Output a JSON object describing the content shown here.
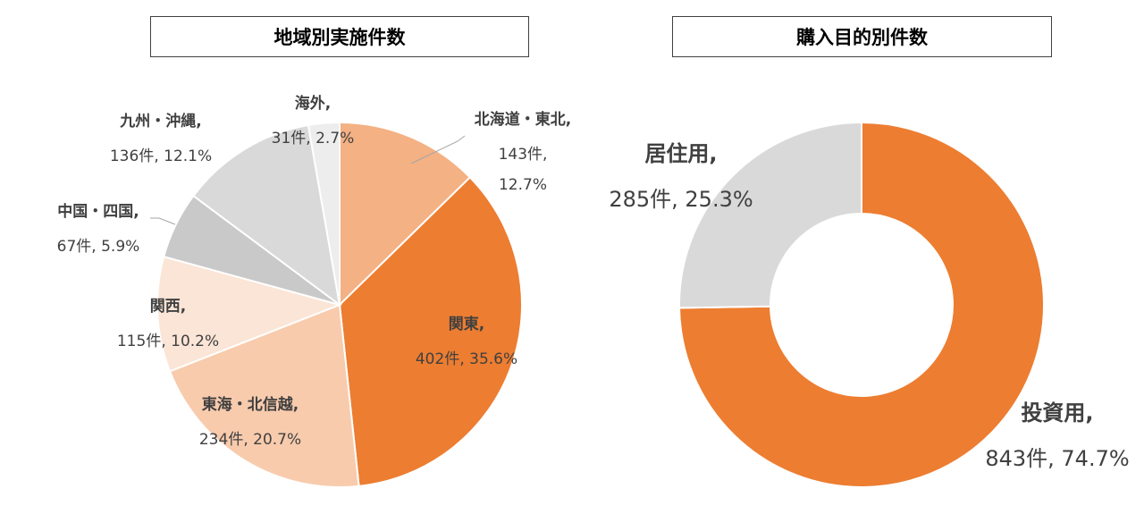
{
  "chart_data": [
    {
      "type": "pie",
      "title": "地域別実施件数",
      "unit": "件",
      "slices": [
        {
          "label": "北海道・東北",
          "value": 143,
          "percent": "12.7%",
          "value_text": "143件,",
          "color": "#F4B183"
        },
        {
          "label": "関東",
          "value": 402,
          "percent": "35.6%",
          "value_text": "402件, 35.6%",
          "color": "#ED7D31"
        },
        {
          "label": "東海・北信越",
          "value": 234,
          "percent": "20.7%",
          "value_text": "234件, 20.7%",
          "color": "#F8CBAD"
        },
        {
          "label": "関西",
          "value": 115,
          "percent": "10.2%",
          "value_text": "115件, 10.2%",
          "color": "#FBE5D6"
        },
        {
          "label": "中国・四国",
          "value": 67,
          "percent": "5.9%",
          "value_text": "67件, 5.9%",
          "color": "#C9C9C9"
        },
        {
          "label": "九州・沖縄",
          "value": 136,
          "percent": "12.1%",
          "value_text": "136件, 12.1%",
          "color": "#D9D9D9"
        },
        {
          "label": "海外",
          "value": 31,
          "percent": "2.7%",
          "value_text": "31件, 2.7%",
          "color": "#EDEDED"
        }
      ],
      "name_suffix": ","
    },
    {
      "type": "pie",
      "subtype": "donut",
      "title": "購入目的別件数",
      "unit": "件",
      "slices": [
        {
          "label": "投資用",
          "value": 843,
          "percent": "74.7%",
          "value_text": "843件, 74.7%",
          "color": "#ED7D31"
        },
        {
          "label": "居住用",
          "value": 285,
          "percent": "25.3%",
          "value_text": "285件, 25.3%",
          "color": "#D9D9D9"
        }
      ]
    }
  ],
  "labels": {
    "hokkaido": "北海道・東北,",
    "kanto": "関東,",
    "tokai": "東海・北信越,",
    "kansai": "関西,",
    "chugoku": "中国・四国,",
    "kyushu": "九州・沖縄,",
    "kaigai": "海外,",
    "toshi": "投資用,",
    "kyoju": "居住用,"
  }
}
